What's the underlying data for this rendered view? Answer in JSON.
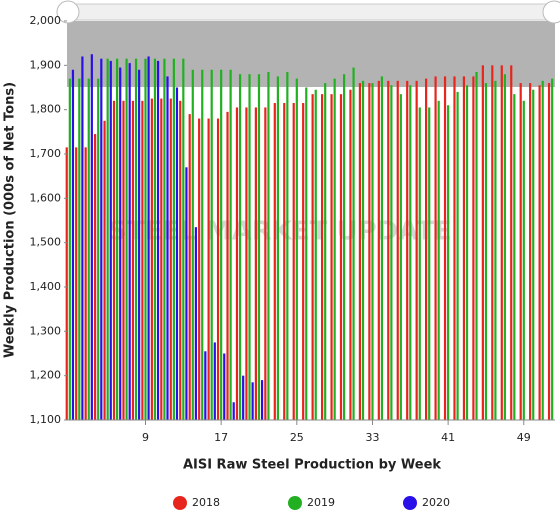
{
  "chart_data": {
    "type": "bar",
    "x_label": "AISI Raw Steel Production by Week",
    "y_label": "Weekly Production (000s of Net Tons)",
    "watermark": "STEEL MARKET UPDATE",
    "xlim": [
      0.7,
      52.3
    ],
    "xticks": [
      9,
      17,
      25,
      33,
      41,
      49
    ],
    "ylim": [
      1100,
      2000
    ],
    "yticks": [
      {
        "value": 1100,
        "label": "1,100"
      },
      {
        "value": 1200,
        "label": "1,200"
      },
      {
        "value": 1300,
        "label": "1,300"
      },
      {
        "value": 1400,
        "label": "1,400"
      },
      {
        "value": 1500,
        "label": "1,500"
      },
      {
        "value": 1600,
        "label": "1,600"
      },
      {
        "value": 1700,
        "label": "1,700"
      },
      {
        "value": 1800,
        "label": "1,800"
      },
      {
        "value": 1900,
        "label": "1,900"
      },
      {
        "value": 2000,
        "label": "2,000"
      }
    ],
    "legend": "bottom",
    "series": [
      {
        "name": "2018",
        "color": "#e8251d",
        "values": [
          1715,
          1715,
          1715,
          1745,
          1775,
          1820,
          1820,
          1820,
          1820,
          1825,
          1825,
          1825,
          1820,
          1790,
          1780,
          1780,
          1780,
          1795,
          1805,
          1805,
          1805,
          1805,
          1815,
          1815,
          1815,
          1815,
          1835,
          1835,
          1835,
          1835,
          1845,
          1860,
          1860,
          1865,
          1865,
          1865,
          1865,
          1865,
          1870,
          1875,
          1875,
          1875,
          1875,
          1875,
          1900,
          1900,
          1900,
          1900,
          1860,
          1860,
          1855,
          1860
        ]
      },
      {
        "name": "2019",
        "color": "#22b022",
        "values": [
          1870,
          1870,
          1870,
          1870,
          1915,
          1915,
          1915,
          1915,
          1915,
          1915,
          1915,
          1915,
          1915,
          1890,
          1890,
          1890,
          1890,
          1890,
          1880,
          1880,
          1880,
          1885,
          1875,
          1885,
          1870,
          1850,
          1845,
          1860,
          1870,
          1880,
          1895,
          1865,
          1860,
          1875,
          1855,
          1835,
          1855,
          1805,
          1805,
          1820,
          1810,
          1840,
          1855,
          1885,
          1860,
          1865,
          1880,
          1835,
          1820,
          1845,
          1865,
          1870
        ]
      },
      {
        "name": "2020",
        "color": "#2a10e8",
        "values": [
          1890,
          1920,
          1925,
          1915,
          1910,
          1895,
          1905,
          1890,
          1920,
          1910,
          1875,
          1850,
          1670,
          1535,
          1255,
          1275,
          1250,
          1140,
          1200,
          1185,
          1190
        ]
      }
    ]
  }
}
